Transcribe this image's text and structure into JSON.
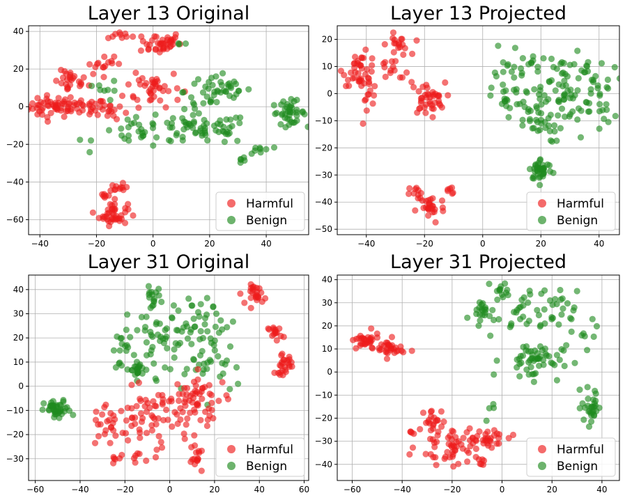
{
  "colors": {
    "Harmful": "#ee1c1c",
    "Benign": "#1e8a1e"
  },
  "chart_data": [
    {
      "type": "scatter",
      "title": "Layer 13 Original",
      "xlim": [
        -44,
        55
      ],
      "ylim": [
        -68,
        43
      ],
      "xticks": [
        -40,
        -20,
        0,
        20,
        40
      ],
      "yticks": [
        -60,
        -40,
        -20,
        0,
        20,
        40
      ],
      "grid": true,
      "legend_loc": "lower-right",
      "legend": [
        "Harmful",
        "Benign"
      ],
      "clusters": [
        {
          "series": "Harmful",
          "cx": -36,
          "cy": 0,
          "sx": 4,
          "sy": 3,
          "n": 40
        },
        {
          "series": "Harmful",
          "cx": -26,
          "cy": 0,
          "sx": 5,
          "sy": 2,
          "n": 35
        },
        {
          "series": "Harmful",
          "cx": -29,
          "cy": 13,
          "sx": 3,
          "sy": 3,
          "n": 25
        },
        {
          "series": "Harmful",
          "cx": -12,
          "cy": 38,
          "sx": 2,
          "sy": 1,
          "n": 8
        },
        {
          "series": "Harmful",
          "cx": 2,
          "cy": 34,
          "sx": 4,
          "sy": 3,
          "n": 40
        },
        {
          "series": "Harmful",
          "cx": 0,
          "cy": 10,
          "sx": 5,
          "sy": 5,
          "n": 40
        },
        {
          "series": "Harmful",
          "cx": -17,
          "cy": 22,
          "sx": 4,
          "sy": 2,
          "n": 15
        },
        {
          "series": "Harmful",
          "cx": -15,
          "cy": -2,
          "sx": 3,
          "sy": 3,
          "n": 14
        },
        {
          "series": "Harmful",
          "cx": -14,
          "cy": -57,
          "sx": 2.5,
          "sy": 3,
          "n": 40
        },
        {
          "series": "Harmful",
          "cx": -12,
          "cy": -44,
          "sx": 1.5,
          "sy": 1.5,
          "n": 12
        },
        {
          "series": "Harmful",
          "cx": -17,
          "cy": -47,
          "sx": 1,
          "sy": 1,
          "n": 6
        },
        {
          "series": "Benign",
          "cx": 48,
          "cy": -3,
          "sx": 3,
          "sy": 3,
          "n": 40
        },
        {
          "series": "Benign",
          "cx": 23,
          "cy": 8,
          "sx": 6,
          "sy": 5,
          "n": 45
        },
        {
          "series": "Benign",
          "cx": 18,
          "cy": -12,
          "sx": 8,
          "sy": 4,
          "n": 55
        },
        {
          "series": "Benign",
          "cx": -2,
          "cy": -14,
          "sx": 9,
          "sy": 4,
          "n": 35
        },
        {
          "series": "Benign",
          "cx": 38,
          "cy": -23,
          "sx": 2,
          "sy": 2,
          "n": 8
        },
        {
          "series": "Benign",
          "cx": 32,
          "cy": -28,
          "sx": 1,
          "sy": 1,
          "n": 5
        },
        {
          "series": "Benign",
          "cx": -16,
          "cy": 8,
          "sx": 2,
          "sy": 3,
          "n": 8
        },
        {
          "series": "Benign",
          "cx": 10,
          "cy": 34,
          "sx": 1,
          "sy": 0.6,
          "n": 3
        }
      ]
    },
    {
      "type": "scatter",
      "title": "Layer 13 Projected",
      "xlim": [
        -50,
        47
      ],
      "ylim": [
        -52,
        25
      ],
      "xticks": [
        -40,
        -20,
        0,
        20,
        40
      ],
      "yticks": [
        -50,
        -40,
        -30,
        -20,
        -10,
        0,
        10,
        20
      ],
      "grid": true,
      "legend_loc": "lower-right",
      "legend": [
        "Harmful",
        "Benign"
      ],
      "clusters": [
        {
          "series": "Harmful",
          "cx": -42,
          "cy": 9,
          "sx": 3,
          "sy": 3,
          "n": 35
        },
        {
          "series": "Harmful",
          "cx": -40,
          "cy": 1,
          "sx": 2,
          "sy": 3,
          "n": 15
        },
        {
          "series": "Harmful",
          "cx": -29,
          "cy": 18,
          "sx": 2,
          "sy": 2,
          "n": 18
        },
        {
          "series": "Harmful",
          "cx": -19,
          "cy": -2,
          "sx": 3,
          "sy": 3,
          "n": 40
        },
        {
          "series": "Harmful",
          "cx": -32,
          "cy": 7,
          "sx": 4,
          "sy": 3,
          "n": 15
        },
        {
          "series": "Harmful",
          "cx": -18,
          "cy": -42,
          "sx": 2.5,
          "sy": 3,
          "n": 28
        },
        {
          "series": "Harmful",
          "cx": -11,
          "cy": -36,
          "sx": 1,
          "sy": 1,
          "n": 6
        },
        {
          "series": "Harmful",
          "cx": -22,
          "cy": -36,
          "sx": 2,
          "sy": 1,
          "n": 8
        },
        {
          "series": "Benign",
          "cx": 20,
          "cy": -28,
          "sx": 2,
          "sy": 2,
          "n": 40
        },
        {
          "series": "Benign",
          "cx": 28,
          "cy": 5,
          "sx": 8,
          "sy": 6,
          "n": 70
        },
        {
          "series": "Benign",
          "cx": 18,
          "cy": -10,
          "sx": 5,
          "sy": 4,
          "n": 40
        },
        {
          "series": "Benign",
          "cx": 12,
          "cy": 8,
          "sx": 4,
          "sy": 5,
          "n": 25
        },
        {
          "series": "Benign",
          "cx": 36,
          "cy": -5,
          "sx": 5,
          "sy": 5,
          "n": 25
        },
        {
          "series": "Benign",
          "cx": 7,
          "cy": -2,
          "sx": 2,
          "sy": 3,
          "n": 10
        }
      ]
    },
    {
      "type": "scatter",
      "title": "Layer 31 Original",
      "xlim": [
        -63,
        62
      ],
      "ylim": [
        -39,
        46
      ],
      "xticks": [
        -60,
        -40,
        -20,
        0,
        20,
        40,
        60
      ],
      "yticks": [
        -30,
        -20,
        -10,
        0,
        10,
        20,
        30,
        40
      ],
      "grid": true,
      "legend_loc": "lower-right",
      "legend": [
        "Harmful",
        "Benign"
      ],
      "clusters": [
        {
          "series": "Benign",
          "cx": -50,
          "cy": -10,
          "sx": 3,
          "sy": 2,
          "n": 40
        },
        {
          "series": "Benign",
          "cx": 0,
          "cy": 20,
          "sx": 10,
          "sy": 8,
          "n": 70
        },
        {
          "series": "Benign",
          "cx": -8,
          "cy": 37,
          "sx": 2,
          "sy": 2,
          "n": 15
        },
        {
          "series": "Benign",
          "cx": -15,
          "cy": 7,
          "sx": 3,
          "sy": 2,
          "n": 22
        },
        {
          "series": "Benign",
          "cx": 18,
          "cy": 25,
          "sx": 6,
          "sy": 5,
          "n": 25
        },
        {
          "series": "Benign",
          "cx": 20,
          "cy": 8,
          "sx": 6,
          "sy": 6,
          "n": 20
        },
        {
          "series": "Benign",
          "cx": -20,
          "cy": 15,
          "sx": 3,
          "sy": 4,
          "n": 12
        },
        {
          "series": "Harmful",
          "cx": 39,
          "cy": 38,
          "sx": 2,
          "sy": 2,
          "n": 25
        },
        {
          "series": "Harmful",
          "cx": 47,
          "cy": 22,
          "sx": 1.5,
          "sy": 1.5,
          "n": 15
        },
        {
          "series": "Harmful",
          "cx": 51,
          "cy": 9,
          "sx": 2,
          "sy": 2,
          "n": 25
        },
        {
          "series": "Harmful",
          "cx": 14,
          "cy": -5,
          "sx": 6,
          "sy": 5,
          "n": 45
        },
        {
          "series": "Harmful",
          "cx": -5,
          "cy": -12,
          "sx": 8,
          "sy": 6,
          "n": 60
        },
        {
          "series": "Harmful",
          "cx": -25,
          "cy": -15,
          "sx": 7,
          "sy": 6,
          "n": 35
        },
        {
          "series": "Harmful",
          "cx": 12,
          "cy": -30,
          "sx": 2,
          "sy": 2,
          "n": 15
        },
        {
          "series": "Harmful",
          "cx": -12,
          "cy": -30,
          "sx": 5,
          "sy": 3,
          "n": 12
        }
      ]
    },
    {
      "type": "scatter",
      "title": "Layer 31 Projected",
      "xlim": [
        -66,
        47
      ],
      "ylim": [
        -47,
        42
      ],
      "xticks": [
        -60,
        -40,
        -20,
        0,
        20,
        40
      ],
      "yticks": [
        -40,
        -30,
        -20,
        -10,
        0,
        10,
        20,
        30,
        40
      ],
      "grid": true,
      "legend_loc": "lower-right",
      "legend": [
        "Harmful",
        "Benign"
      ],
      "clusters": [
        {
          "series": "Harmful",
          "cx": -55,
          "cy": 13,
          "sx": 3,
          "sy": 2,
          "n": 30
        },
        {
          "series": "Harmful",
          "cx": -45,
          "cy": 10,
          "sx": 3,
          "sy": 2,
          "n": 30
        },
        {
          "series": "Harmful",
          "cx": -20,
          "cy": -32,
          "sx": 7,
          "sy": 4,
          "n": 60
        },
        {
          "series": "Harmful",
          "cx": -5,
          "cy": -28,
          "sx": 5,
          "sy": 2,
          "n": 25
        },
        {
          "series": "Harmful",
          "cx": -28,
          "cy": -20,
          "sx": 2,
          "sy": 2,
          "n": 15
        },
        {
          "series": "Harmful",
          "cx": -35,
          "cy": -26,
          "sx": 1,
          "sy": 1,
          "n": 5
        },
        {
          "series": "Harmful",
          "cx": -8,
          "cy": -38,
          "sx": 1,
          "sy": 2,
          "n": 6
        },
        {
          "series": "Benign",
          "cx": 12,
          "cy": 5,
          "sx": 6,
          "sy": 4,
          "n": 55
        },
        {
          "series": "Benign",
          "cx": 10,
          "cy": 25,
          "sx": 10,
          "sy": 5,
          "n": 55
        },
        {
          "series": "Benign",
          "cx": 0,
          "cy": 35,
          "sx": 2,
          "sy": 2,
          "n": 12
        },
        {
          "series": "Benign",
          "cx": -8,
          "cy": 27,
          "sx": 2,
          "sy": 2,
          "n": 15
        },
        {
          "series": "Benign",
          "cx": 36,
          "cy": -15,
          "sx": 2,
          "sy": 4,
          "n": 30
        },
        {
          "series": "Benign",
          "cx": 30,
          "cy": 17,
          "sx": 3,
          "sy": 4,
          "n": 8
        },
        {
          "series": "Benign",
          "cx": -6,
          "cy": -14,
          "sx": 2,
          "sy": 4,
          "n": 4
        }
      ]
    }
  ]
}
